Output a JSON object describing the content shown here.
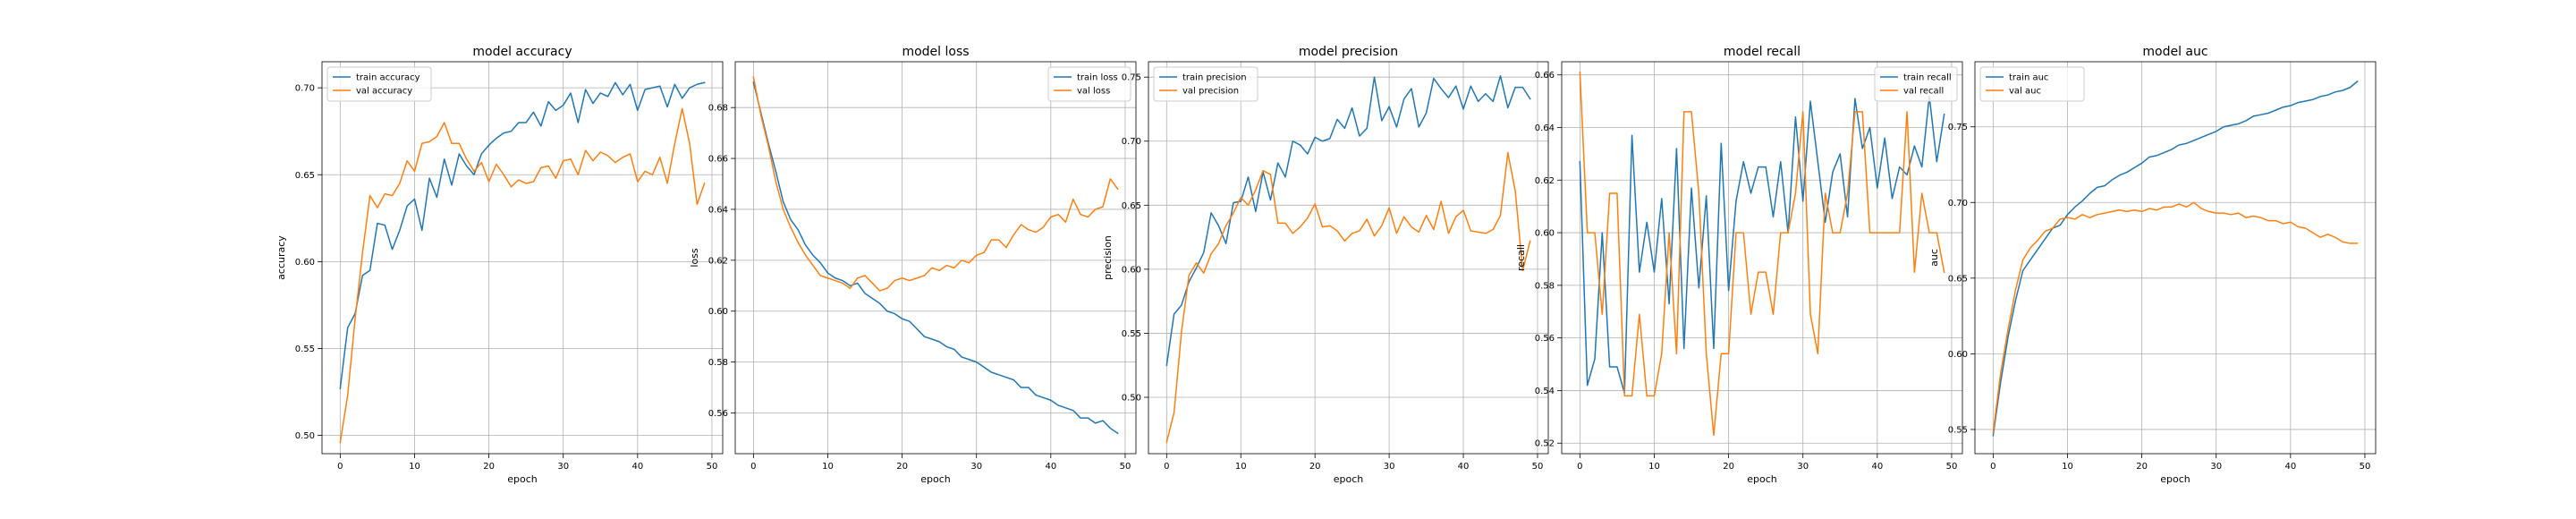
{
  "colors": {
    "train": "#1f77b4",
    "val": "#ff7f0e",
    "grid": "#b0b0b0",
    "axes": "#000000"
  },
  "chart_data": [
    {
      "type": "line",
      "title": "model accuracy",
      "xlabel": "epoch",
      "ylabel": "accuracy",
      "xlim": [
        -2.45,
        51.45
      ],
      "ylim": [
        0.4895,
        0.715
      ],
      "xticks": [
        0,
        10,
        20,
        30,
        40,
        50
      ],
      "yticks": [
        0.5,
        0.55,
        0.6,
        0.65,
        0.7
      ],
      "ytick_labels": [
        "0.50",
        "0.55",
        "0.60",
        "0.65",
        "0.70"
      ],
      "grid": true,
      "legend": "upper left",
      "series": [
        {
          "name": "train accuracy",
          "color": "#1f77b4",
          "y": [
            0.527,
            0.562,
            0.57,
            0.592,
            0.595,
            0.622,
            0.621,
            0.607,
            0.618,
            0.632,
            0.636,
            0.618,
            0.648,
            0.637,
            0.659,
            0.644,
            0.662,
            0.655,
            0.65,
            0.662,
            0.667,
            0.671,
            0.674,
            0.675,
            0.68,
            0.68,
            0.686,
            0.678,
            0.692,
            0.687,
            0.69,
            0.697,
            0.68,
            0.699,
            0.691,
            0.697,
            0.695,
            0.703,
            0.696,
            0.702,
            0.687,
            0.699,
            0.7,
            0.701,
            0.689,
            0.702,
            0.694,
            0.7,
            0.702,
            0.703
          ]
        },
        {
          "name": "val accuracy",
          "color": "#ff7f0e",
          "y": [
            0.496,
            0.523,
            0.567,
            0.605,
            0.638,
            0.631,
            0.639,
            0.638,
            0.645,
            0.658,
            0.652,
            0.668,
            0.669,
            0.672,
            0.68,
            0.668,
            0.668,
            0.659,
            0.652,
            0.657,
            0.646,
            0.656,
            0.65,
            0.643,
            0.647,
            0.645,
            0.646,
            0.654,
            0.655,
            0.648,
            0.658,
            0.659,
            0.65,
            0.664,
            0.658,
            0.663,
            0.661,
            0.657,
            0.66,
            0.662,
            0.646,
            0.652,
            0.65,
            0.66,
            0.645,
            0.668,
            0.688,
            0.668,
            0.633,
            0.645
          ]
        }
      ]
    },
    {
      "type": "line",
      "title": "model loss",
      "xlabel": "epoch",
      "ylabel": "loss",
      "xlim": [
        -2.45,
        51.45
      ],
      "ylim": [
        0.544,
        0.698
      ],
      "xticks": [
        0,
        10,
        20,
        30,
        40,
        50
      ],
      "yticks": [
        0.56,
        0.58,
        0.6,
        0.62,
        0.64,
        0.66,
        0.68
      ],
      "ytick_labels": [
        "0.56",
        "0.58",
        "0.60",
        "0.62",
        "0.64",
        "0.66",
        "0.68"
      ],
      "grid": true,
      "legend": "upper right",
      "series": [
        {
          "name": "train loss",
          "color": "#1f77b4",
          "y": [
            0.69,
            0.678,
            0.666,
            0.655,
            0.643,
            0.636,
            0.632,
            0.626,
            0.622,
            0.619,
            0.615,
            0.613,
            0.612,
            0.61,
            0.611,
            0.607,
            0.605,
            0.603,
            0.6,
            0.599,
            0.597,
            0.596,
            0.593,
            0.59,
            0.589,
            0.588,
            0.586,
            0.585,
            0.582,
            0.581,
            0.58,
            0.578,
            0.576,
            0.575,
            0.574,
            0.573,
            0.57,
            0.57,
            0.567,
            0.566,
            0.565,
            0.563,
            0.562,
            0.561,
            0.558,
            0.558,
            0.556,
            0.557,
            0.554,
            0.552
          ]
        },
        {
          "name": "val loss",
          "color": "#ff7f0e",
          "y": [
            0.692,
            0.677,
            0.665,
            0.651,
            0.64,
            0.633,
            0.627,
            0.622,
            0.618,
            0.614,
            0.613,
            0.612,
            0.611,
            0.609,
            0.613,
            0.614,
            0.611,
            0.608,
            0.609,
            0.612,
            0.613,
            0.612,
            0.613,
            0.614,
            0.617,
            0.616,
            0.618,
            0.617,
            0.62,
            0.619,
            0.622,
            0.623,
            0.628,
            0.628,
            0.625,
            0.63,
            0.634,
            0.632,
            0.631,
            0.633,
            0.637,
            0.638,
            0.635,
            0.644,
            0.638,
            0.637,
            0.64,
            0.641,
            0.652,
            0.648
          ]
        }
      ]
    },
    {
      "type": "line",
      "title": "model precision",
      "xlabel": "epoch",
      "ylabel": "precision",
      "xlim": [
        -2.45,
        51.45
      ],
      "ylim": [
        0.456,
        0.762
      ],
      "xticks": [
        0,
        10,
        20,
        30,
        40,
        50
      ],
      "yticks": [
        0.5,
        0.55,
        0.6,
        0.65,
        0.7,
        0.75
      ],
      "ytick_labels": [
        "0.50",
        "0.55",
        "0.60",
        "0.65",
        "0.70",
        "0.75"
      ],
      "grid": true,
      "legend": "upper left",
      "series": [
        {
          "name": "train precision",
          "color": "#1f77b4",
          "y": [
            0.525,
            0.565,
            0.572,
            0.59,
            0.601,
            0.613,
            0.644,
            0.634,
            0.62,
            0.652,
            0.653,
            0.672,
            0.645,
            0.676,
            0.654,
            0.683,
            0.672,
            0.7,
            0.697,
            0.69,
            0.703,
            0.7,
            0.702,
            0.717,
            0.71,
            0.726,
            0.704,
            0.71,
            0.75,
            0.716,
            0.727,
            0.711,
            0.733,
            0.741,
            0.711,
            0.722,
            0.749,
            0.741,
            0.734,
            0.743,
            0.725,
            0.743,
            0.731,
            0.737,
            0.731,
            0.751,
            0.726,
            0.742,
            0.742,
            0.733
          ]
        },
        {
          "name": "val precision",
          "color": "#ff7f0e",
          "y": [
            0.465,
            0.488,
            0.551,
            0.595,
            0.605,
            0.597,
            0.612,
            0.62,
            0.634,
            0.644,
            0.656,
            0.65,
            0.662,
            0.677,
            0.674,
            0.636,
            0.636,
            0.628,
            0.633,
            0.64,
            0.651,
            0.633,
            0.634,
            0.63,
            0.622,
            0.628,
            0.63,
            0.639,
            0.626,
            0.634,
            0.648,
            0.628,
            0.641,
            0.633,
            0.629,
            0.642,
            0.631,
            0.653,
            0.628,
            0.641,
            0.646,
            0.63,
            0.629,
            0.628,
            0.631,
            0.642,
            0.691,
            0.661,
            0.599,
            0.622
          ]
        }
      ]
    },
    {
      "type": "line",
      "title": "model recall",
      "xlabel": "epoch",
      "ylabel": "recall",
      "xlim": [
        -2.45,
        51.45
      ],
      "ylim": [
        0.516,
        0.665
      ],
      "xticks": [
        0,
        10,
        20,
        30,
        40,
        50
      ],
      "yticks": [
        0.52,
        0.54,
        0.56,
        0.58,
        0.6,
        0.62,
        0.64,
        0.66
      ],
      "ytick_labels": [
        "0.52",
        "0.54",
        "0.56",
        "0.58",
        "0.60",
        "0.62",
        "0.64",
        "0.66"
      ],
      "grid": true,
      "legend": "upper right",
      "series": [
        {
          "name": "train recall",
          "color": "#1f77b4",
          "y": [
            0.627,
            0.542,
            0.552,
            0.6,
            0.549,
            0.549,
            0.539,
            0.637,
            0.585,
            0.604,
            0.585,
            0.613,
            0.573,
            0.632,
            0.556,
            0.617,
            0.579,
            0.614,
            0.556,
            0.634,
            0.578,
            0.612,
            0.627,
            0.615,
            0.625,
            0.625,
            0.606,
            0.627,
            0.6,
            0.644,
            0.612,
            0.65,
            0.627,
            0.604,
            0.623,
            0.63,
            0.606,
            0.651,
            0.632,
            0.64,
            0.617,
            0.636,
            0.613,
            0.625,
            0.622,
            0.633,
            0.625,
            0.652,
            0.627,
            0.645
          ]
        },
        {
          "name": "val recall",
          "color": "#ff7f0e",
          "y": [
            0.661,
            0.6,
            0.6,
            0.569,
            0.615,
            0.615,
            0.538,
            0.538,
            0.569,
            0.538,
            0.538,
            0.554,
            0.6,
            0.554,
            0.646,
            0.646,
            0.615,
            0.554,
            0.523,
            0.554,
            0.554,
            0.6,
            0.6,
            0.569,
            0.585,
            0.585,
            0.569,
            0.6,
            0.6,
            0.615,
            0.646,
            0.569,
            0.554,
            0.615,
            0.6,
            0.6,
            0.615,
            0.646,
            0.646,
            0.6,
            0.6,
            0.6,
            0.6,
            0.6,
            0.646,
            0.585,
            0.615,
            0.6,
            0.6,
            0.585
          ]
        }
      ]
    },
    {
      "type": "line",
      "title": "model auc",
      "xlabel": "epoch",
      "ylabel": "auc",
      "xlim": [
        -2.45,
        51.45
      ],
      "ylim": [
        0.534,
        0.793
      ],
      "xticks": [
        0,
        10,
        20,
        30,
        40,
        50
      ],
      "yticks": [
        0.55,
        0.6,
        0.65,
        0.7,
        0.75
      ],
      "ytick_labels": [
        "0.55",
        "0.60",
        "0.65",
        "0.70",
        "0.75"
      ],
      "grid": true,
      "legend": "upper left",
      "series": [
        {
          "name": "train auc",
          "color": "#1f77b4",
          "y": [
            0.546,
            0.581,
            0.611,
            0.635,
            0.655,
            0.662,
            0.669,
            0.676,
            0.683,
            0.685,
            0.692,
            0.697,
            0.701,
            0.706,
            0.71,
            0.711,
            0.715,
            0.718,
            0.72,
            0.723,
            0.726,
            0.73,
            0.731,
            0.733,
            0.735,
            0.738,
            0.739,
            0.741,
            0.743,
            0.745,
            0.747,
            0.75,
            0.751,
            0.752,
            0.754,
            0.757,
            0.758,
            0.759,
            0.761,
            0.763,
            0.764,
            0.766,
            0.767,
            0.768,
            0.77,
            0.771,
            0.773,
            0.774,
            0.776,
            0.78
          ]
        },
        {
          "name": "val auc",
          "color": "#ff7f0e",
          "y": [
            0.548,
            0.587,
            0.616,
            0.642,
            0.662,
            0.67,
            0.675,
            0.681,
            0.683,
            0.689,
            0.69,
            0.689,
            0.692,
            0.69,
            0.692,
            0.693,
            0.694,
            0.695,
            0.694,
            0.695,
            0.694,
            0.696,
            0.695,
            0.697,
            0.697,
            0.699,
            0.697,
            0.7,
            0.696,
            0.694,
            0.693,
            0.693,
            0.692,
            0.693,
            0.69,
            0.691,
            0.69,
            0.688,
            0.688,
            0.686,
            0.687,
            0.684,
            0.683,
            0.68,
            0.677,
            0.679,
            0.677,
            0.674,
            0.673,
            0.673
          ]
        }
      ]
    }
  ]
}
